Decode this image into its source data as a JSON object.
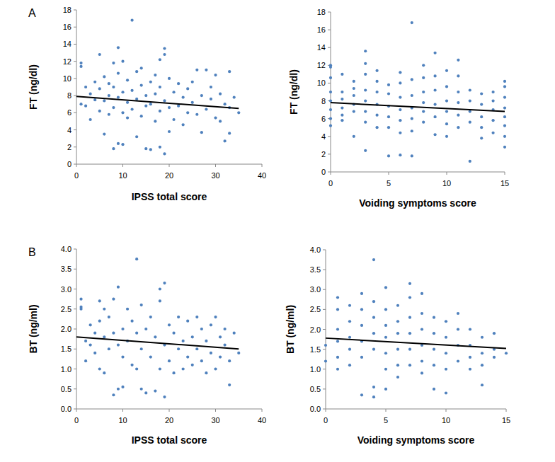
{
  "chart_data": [
    {
      "type": "scatter",
      "annotations": [
        "A"
      ],
      "x_label": "IPSS total score",
      "y_label": "FT (ng/dl)",
      "xlim": [
        0,
        40
      ],
      "xticks": [
        0,
        10,
        20,
        30,
        40
      ],
      "ylim": [
        0,
        18
      ],
      "yticks": [
        0,
        2,
        4,
        6,
        8,
        10,
        12,
        14,
        16,
        18
      ],
      "grid": false,
      "series": [
        {
          "type": "scatter",
          "color": "#4f81bd",
          "marker": "circle",
          "x": [
            1,
            1,
            1,
            2,
            2,
            3,
            3,
            4,
            4,
            5,
            5,
            5,
            6,
            6,
            6,
            7,
            7,
            7,
            8,
            8,
            8,
            8,
            9,
            9,
            9,
            9,
            10,
            10,
            10,
            10,
            11,
            11,
            11,
            12,
            12,
            12,
            13,
            13,
            13,
            14,
            14,
            14,
            15,
            15,
            15,
            16,
            16,
            16,
            17,
            17,
            17,
            18,
            18,
            18,
            18,
            19,
            19,
            19,
            19,
            20,
            20,
            20,
            21,
            21,
            22,
            22,
            23,
            23,
            24,
            24,
            25,
            25,
            26,
            26,
            27,
            27,
            28,
            28,
            29,
            29,
            30,
            30,
            31,
            31,
            32,
            32,
            33,
            33,
            33,
            34,
            35
          ],
          "values": [
            11.8,
            11.4,
            7.0,
            6.8,
            9.0,
            5.2,
            8.2,
            7.5,
            9.6,
            12.8,
            6.2,
            8.8,
            3.5,
            10.2,
            7.4,
            5.8,
            9.4,
            8.0,
            11.8,
            1.8,
            6.6,
            9.0,
            13.6,
            2.4,
            7.8,
            10.6,
            2.3,
            12.0,
            6.0,
            8.4,
            9.8,
            5.4,
            7.2,
            16.8,
            8.6,
            6.4,
            3.2,
            10.8,
            7.6,
            9.2,
            5.6,
            11.2,
            1.8,
            8.0,
            6.8,
            1.7,
            9.6,
            7.0,
            10.4,
            5.0,
            8.2,
            12.2,
            2.0,
            6.2,
            9.0,
            13.5,
            12.8,
            1.2,
            7.4,
            3.8,
            10.0,
            6.6,
            8.4,
            5.2,
            9.4,
            6.8,
            7.8,
            4.6,
            8.8,
            6.0,
            9.6,
            7.2,
            11.0,
            5.8,
            3.7,
            8.0,
            11.0,
            6.4,
            7.6,
            9.0,
            10.4,
            5.4,
            5.0,
            8.2,
            2.7,
            7.0,
            10.8,
            3.6,
            6.6,
            7.8,
            6.0
          ]
        },
        {
          "type": "line",
          "color": "#000000",
          "x": [
            0,
            35
          ],
          "values": [
            7.9,
            6.5
          ]
        }
      ]
    },
    {
      "type": "scatter",
      "x_label": "Voiding symptoms score",
      "y_label": "FT (ng/dl)",
      "xlim": [
        0,
        15
      ],
      "xticks": [
        0,
        5,
        10,
        15
      ],
      "ylim": [
        0,
        18
      ],
      "yticks": [
        0,
        2,
        4,
        6,
        8,
        10,
        12,
        14,
        16,
        18
      ],
      "grid": false,
      "series": [
        {
          "type": "scatter",
          "color": "#4f81bd",
          "marker": "circle",
          "x": [
            0,
            0,
            0,
            0,
            0,
            0,
            0,
            0,
            1,
            1,
            1,
            1,
            1,
            1,
            2,
            2,
            2,
            2,
            2,
            2,
            3,
            3,
            3,
            3,
            3,
            3,
            3,
            3,
            4,
            4,
            4,
            4,
            4,
            4,
            5,
            5,
            5,
            5,
            5,
            5,
            6,
            6,
            6,
            6,
            6,
            6,
            6,
            7,
            7,
            7,
            7,
            7,
            7,
            7,
            8,
            8,
            8,
            8,
            8,
            8,
            9,
            9,
            9,
            9,
            9,
            9,
            10,
            10,
            10,
            10,
            10,
            10,
            11,
            11,
            11,
            11,
            11,
            11,
            12,
            12,
            12,
            12,
            12,
            13,
            13,
            13,
            13,
            13,
            14,
            14,
            14,
            14,
            14,
            15,
            15,
            15,
            15,
            15,
            15,
            15,
            15
          ],
          "values": [
            12.0,
            11.8,
            10.6,
            9.0,
            8.0,
            7.0,
            6.0,
            5.2,
            11.0,
            9.0,
            8.2,
            7.2,
            6.4,
            5.8,
            10.2,
            9.4,
            8.6,
            7.6,
            6.8,
            4.0,
            13.6,
            12.2,
            11.0,
            9.2,
            8.0,
            6.8,
            5.6,
            2.4,
            11.4,
            10.2,
            9.0,
            7.6,
            6.4,
            5.0,
            9.8,
            8.8,
            7.4,
            6.2,
            5.0,
            1.8,
            11.2,
            10.0,
            8.4,
            7.0,
            5.8,
            4.4,
            1.9,
            16.8,
            10.4,
            8.6,
            7.2,
            6.0,
            4.6,
            1.8,
            12.0,
            10.6,
            9.0,
            7.8,
            6.8,
            5.6,
            13.4,
            10.8,
            9.2,
            7.6,
            6.2,
            4.2,
            11.4,
            9.6,
            8.0,
            6.8,
            5.4,
            4.0,
            12.6,
            10.8,
            9.0,
            7.8,
            6.4,
            5.0,
            9.2,
            8.0,
            6.8,
            5.6,
            1.2,
            8.8,
            7.6,
            6.2,
            5.0,
            3.8,
            9.0,
            8.0,
            7.0,
            5.8,
            4.4,
            10.2,
            9.6,
            8.4,
            7.2,
            6.2,
            5.2,
            4.0,
            2.8
          ]
        },
        {
          "type": "line",
          "color": "#000000",
          "x": [
            0,
            15
          ],
          "values": [
            7.8,
            6.8
          ]
        }
      ]
    },
    {
      "type": "scatter",
      "annotations": [
        "B"
      ],
      "x_label": "IPSS total score",
      "y_label": "BT (ng/ml)",
      "xlim": [
        0,
        40
      ],
      "xticks": [
        0,
        10,
        20,
        30,
        40
      ],
      "ylim": [
        0,
        4
      ],
      "yticks": [
        {
          "value": 0,
          "label": "0.0"
        },
        0.5,
        {
          "value": 1,
          "label": "1.0"
        },
        1.5,
        {
          "value": 2,
          "label": "2.0"
        },
        2.5,
        {
          "value": 3,
          "label": "3.0"
        },
        3.5,
        {
          "value": 4,
          "label": "4.0"
        }
      ],
      "grid": false,
      "series": [
        {
          "type": "scatter",
          "color": "#4f81bd",
          "marker": "circle",
          "x": [
            1,
            1,
            1,
            2,
            2,
            3,
            3,
            4,
            4,
            5,
            5,
            5,
            6,
            6,
            6,
            7,
            7,
            8,
            8,
            8,
            9,
            9,
            9,
            10,
            10,
            10,
            11,
            11,
            12,
            12,
            13,
            13,
            13,
            14,
            14,
            14,
            15,
            15,
            16,
            16,
            17,
            17,
            18,
            18,
            18,
            19,
            19,
            19,
            20,
            20,
            21,
            21,
            22,
            22,
            23,
            23,
            24,
            24,
            25,
            25,
            26,
            26,
            27,
            27,
            28,
            28,
            29,
            29,
            30,
            30,
            31,
            31,
            32,
            32,
            33,
            33,
            34,
            35
          ],
          "values": [
            2.75,
            2.55,
            2.5,
            1.7,
            1.2,
            2.1,
            1.6,
            1.9,
            1.4,
            2.7,
            1.0,
            2.2,
            1.8,
            2.5,
            0.9,
            2.3,
            1.5,
            2.75,
            0.35,
            1.9,
            3.05,
            0.5,
            1.6,
            0.55,
            2.0,
            1.3,
            2.5,
            1.7,
            1.1,
            2.2,
            3.75,
            1.9,
            1.0,
            2.6,
            0.5,
            1.5,
            2.0,
            0.4,
            1.3,
            2.3,
            0.45,
            1.8,
            3.0,
            2.7,
            1.0,
            3.15,
            0.3,
            1.6,
            2.1,
            1.2,
            1.9,
            0.9,
            2.3,
            1.5,
            1.7,
            1.0,
            2.2,
            1.3,
            1.8,
            1.1,
            2.3,
            1.5,
            2.0,
            1.2,
            1.7,
            0.9,
            2.1,
            1.4,
            2.3,
            1.0,
            1.8,
            1.3,
            1.6,
            2.0,
            0.6,
            1.2,
            1.9,
            1.4
          ]
        },
        {
          "type": "line",
          "color": "#000000",
          "x": [
            0,
            35
          ],
          "values": [
            1.8,
            1.5
          ]
        }
      ]
    },
    {
      "type": "scatter",
      "x_label": "Voiding symptoms score",
      "y_label": "BT (ng/ml)",
      "xlim": [
        0,
        15
      ],
      "xticks": [
        0,
        5,
        10,
        15
      ],
      "ylim": [
        0,
        4
      ],
      "yticks": [
        {
          "value": 0,
          "label": "0.0"
        },
        0.5,
        {
          "value": 1,
          "label": "1.0"
        },
        1.5,
        {
          "value": 2,
          "label": "2.0"
        },
        2.5,
        {
          "value": 3,
          "label": "3.0"
        },
        3.5,
        {
          "value": 4,
          "label": "4.0"
        }
      ],
      "grid": false,
      "series": [
        {
          "type": "scatter",
          "color": "#4f81bd",
          "marker": "circle",
          "x": [
            0,
            0,
            1,
            1,
            1,
            1,
            1,
            1,
            2,
            2,
            2,
            2,
            2,
            3,
            3,
            3,
            3,
            3,
            3,
            4,
            4,
            4,
            4,
            4,
            4,
            4,
            5,
            5,
            5,
            5,
            5,
            5,
            5,
            6,
            6,
            6,
            6,
            6,
            6,
            7,
            7,
            7,
            7,
            7,
            7,
            8,
            8,
            8,
            8,
            8,
            8,
            9,
            9,
            9,
            9,
            9,
            10,
            10,
            10,
            10,
            10,
            11,
            11,
            11,
            11,
            12,
            12,
            12,
            12,
            13,
            13,
            13,
            13,
            14,
            14,
            14,
            15
          ],
          "values": [
            1.6,
            1.2,
            2.8,
            2.5,
            2.0,
            1.7,
            1.3,
            1.0,
            2.6,
            2.2,
            1.8,
            1.5,
            1.1,
            2.9,
            2.5,
            2.1,
            1.7,
            1.3,
            0.35,
            3.75,
            2.7,
            2.3,
            1.9,
            1.5,
            0.3,
            0.55,
            3.05,
            2.5,
            2.1,
            1.8,
            1.4,
            1.0,
            0.5,
            2.6,
            2.2,
            1.9,
            1.5,
            1.1,
            0.8,
            3.15,
            2.8,
            2.3,
            1.9,
            1.5,
            1.1,
            2.9,
            2.4,
            2.0,
            1.6,
            1.2,
            0.9,
            2.3,
            1.9,
            1.5,
            1.1,
            0.5,
            2.2,
            1.8,
            1.4,
            1.0,
            0.4,
            2.4,
            2.0,
            1.6,
            1.2,
            2.0,
            1.6,
            1.3,
            1.0,
            1.8,
            1.4,
            1.1,
            0.6,
            1.9,
            1.5,
            1.3,
            1.4
          ]
        },
        {
          "type": "line",
          "color": "#000000",
          "x": [
            0,
            15
          ],
          "values": [
            1.78,
            1.52
          ]
        }
      ]
    }
  ]
}
